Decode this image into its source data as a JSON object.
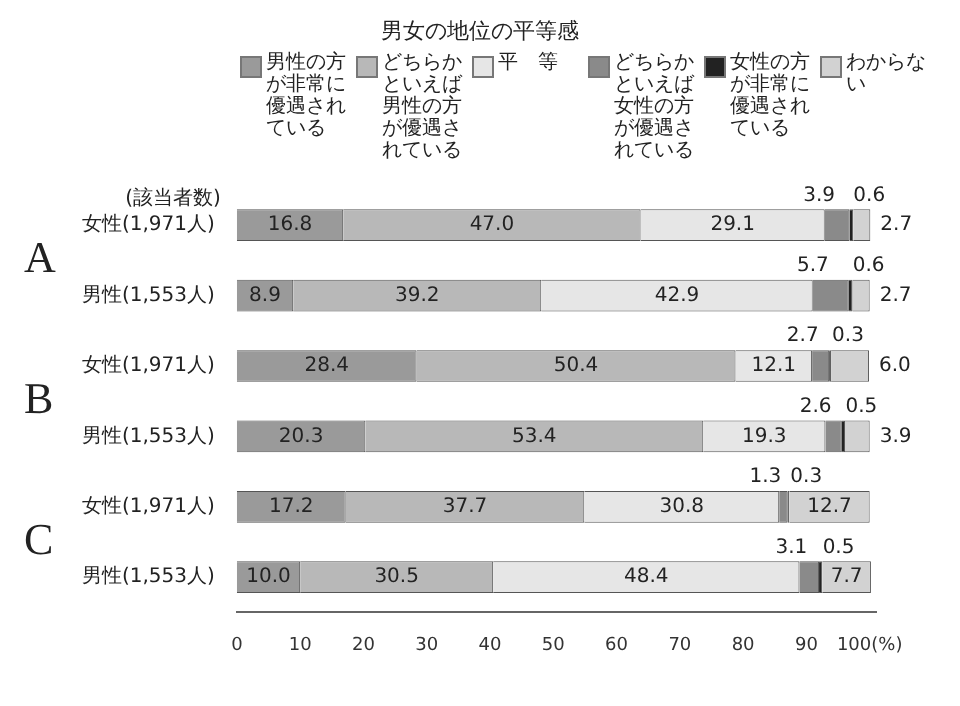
{
  "chart_data": {
    "type": "bar",
    "orientation": "horizontal",
    "stacked": true,
    "title": "男女の地位の平等感",
    "categories": [
      "女性(1,971人)",
      "男性(1,553人)",
      "女性(1,971人)",
      "男性(1,553人)",
      "女性(1,971人)",
      "男性(1,553人)"
    ],
    "series": [
      {
        "name": "男性の方が非常に優遇されている",
        "color": "#9a9a9a",
        "values": [
          16.8,
          8.9,
          28.4,
          20.3,
          17.2,
          10.0
        ],
        "value_labels": [
          "16.8",
          "8.9",
          "28.4",
          "20.3",
          "17.2",
          "10.0"
        ]
      },
      {
        "name": "どちらかといえば男性の方が優遇されている",
        "color": "#b8b8b8",
        "values": [
          47.0,
          39.2,
          50.4,
          53.4,
          37.7,
          30.5
        ],
        "value_labels": [
          "47.0",
          "39.2",
          "50.4",
          "53.4",
          "37.7",
          "30.5"
        ]
      },
      {
        "name": "平　等",
        "color": "#e6e6e6",
        "values": [
          29.1,
          42.9,
          12.1,
          19.3,
          30.8,
          48.4
        ],
        "value_labels": [
          "29.1",
          "42.9",
          "12.1",
          "19.3",
          "30.8",
          "48.4"
        ]
      },
      {
        "name": "どちらかといえば女性の方が優遇されている",
        "color": "#8a8a8a",
        "values": [
          3.9,
          5.7,
          2.7,
          2.6,
          1.3,
          3.1
        ],
        "value_labels": [
          "3.9",
          "5.7",
          "2.7",
          "2.6",
          "1.3",
          "3.1"
        ]
      },
      {
        "name": "女性の方が非常に優遇されている",
        "color": "#222222",
        "values": [
          0.6,
          0.6,
          0.3,
          0.5,
          0.3,
          0.5
        ],
        "value_labels": [
          "0.6",
          "0.6",
          "0.3",
          "0.5",
          "0.3",
          "0.5"
        ]
      },
      {
        "name": "わからない",
        "color": "#d2d2d2",
        "values": [
          2.7,
          2.7,
          6.0,
          3.9,
          12.7,
          7.7
        ],
        "value_labels": [
          "2.7",
          "2.7",
          "6.0",
          "3.9",
          "12.7",
          "7.7"
        ]
      }
    ],
    "xlim": [
      0,
      101
    ],
    "xticks": [
      0,
      10,
      20,
      30,
      40,
      50,
      60,
      70,
      80,
      90,
      {
        "value": 100,
        "label": "100(%)"
      }
    ],
    "legend": "top",
    "grid": false,
    "annotations": [
      "(該当者数)",
      "A",
      "B",
      "C"
    ]
  }
}
